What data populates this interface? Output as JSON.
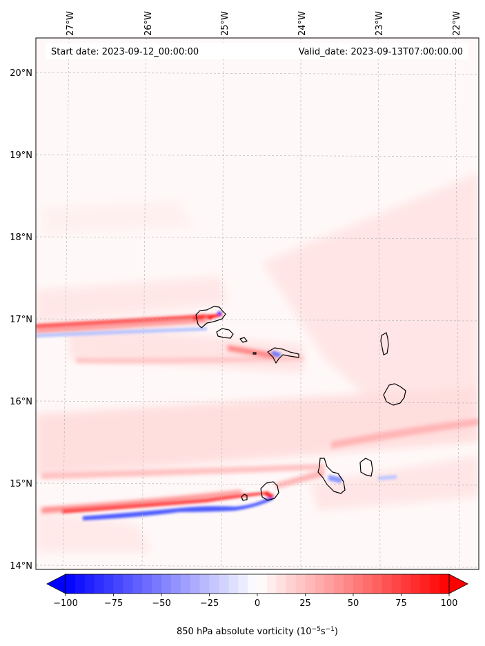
{
  "info": {
    "start_label": "Start date: 2023-09-12_00:00:00",
    "valid_label": "Valid_date: 2023-09-13T07:00:00.00"
  },
  "map": {
    "lon_labels": [
      "27°W",
      "26°W",
      "25°W",
      "24°W",
      "23°W",
      "22°W"
    ],
    "lat_labels": [
      "20°N",
      "19°N",
      "18°N",
      "17°N",
      "16°N",
      "15°N",
      "14°N"
    ],
    "gridlines": true
  },
  "colorbar": {
    "ticks": [
      "−100",
      "−75",
      "−50",
      "−25",
      "0",
      "25",
      "50",
      "75",
      "100"
    ],
    "tick_values": [
      -100,
      -75,
      -50,
      -25,
      0,
      25,
      50,
      75,
      100
    ],
    "min": -100,
    "max": 100,
    "extend": "both",
    "colormap": "bwr",
    "title_prefix": "850 hPa absolute vorticity (10",
    "title_exp1": "−5",
    "title_mid": "s",
    "title_exp2": "−1",
    "title_suffix": ")"
  },
  "colors": {
    "negative": "#0000ff",
    "neutral": "#ffffff",
    "positive": "#ff0000",
    "coastline": "#000000",
    "grid": "#b0b0b0"
  }
}
